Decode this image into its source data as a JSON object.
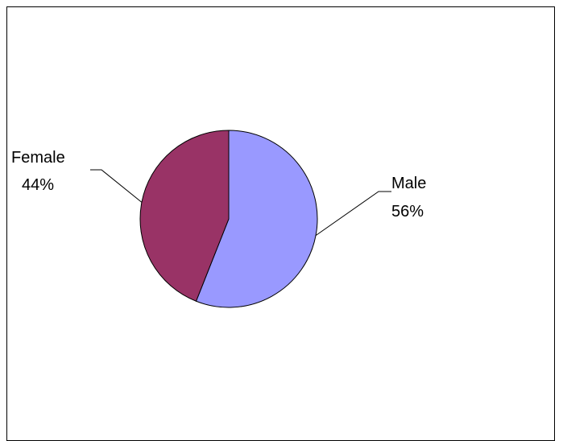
{
  "chart_data": {
    "type": "pie",
    "categories": [
      "Male",
      "Female"
    ],
    "values": [
      56,
      44
    ],
    "labels": {
      "male": {
        "name": "Male",
        "pct": "56%"
      },
      "female": {
        "name": "Female",
        "pct": "44%"
      }
    },
    "colors": {
      "male": "#9999FF",
      "female": "#993366",
      "stroke": "#000000"
    },
    "start_angle_deg": 0,
    "direction": "clockwise",
    "legend": "none"
  }
}
